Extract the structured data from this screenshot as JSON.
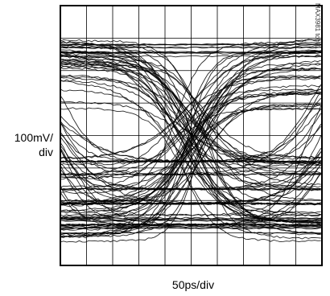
{
  "chart_data": {
    "type": "line",
    "subtype": "eye-diagram",
    "y_label_lines": [
      "100mV/",
      "div"
    ],
    "x_label": "50ps/div",
    "figure_code": "MAX3981 toc01",
    "divisions": {
      "x": 10,
      "y": 8
    },
    "x_unit_per_div": "50ps",
    "y_unit_per_div": "100mV",
    "xlim_div": [
      0,
      10
    ],
    "ylim_div": [
      0,
      8
    ],
    "grid": true,
    "eye": {
      "crossing_div": 4.9,
      "high_level_div": 6.7,
      "low_level_div": 1.1,
      "eye_opening_div": 1.0
    }
  }
}
